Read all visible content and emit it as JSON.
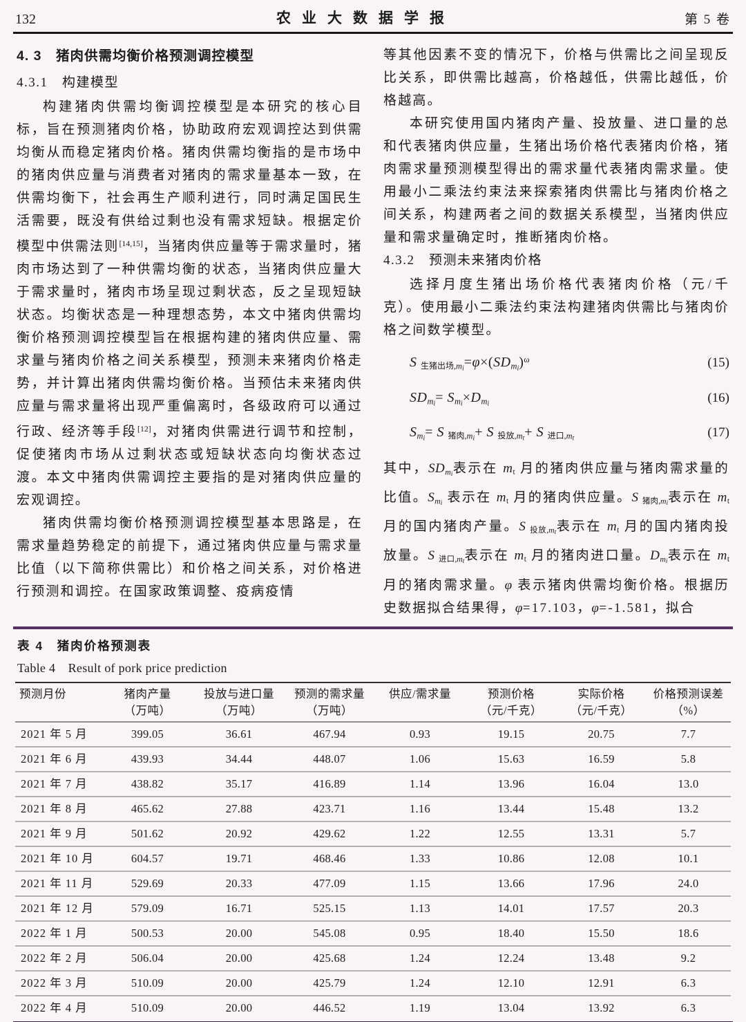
{
  "header": {
    "page_number": "132",
    "journal_title": "农业大数据学报",
    "volume": "第 5 卷"
  },
  "left_column": {
    "heading_43": "4. 3　猪肉供需均衡价格预测调控模型",
    "heading_431": "4.3.1　构建模型",
    "para_build_segments": [
      {
        "t": "构建猪肉供需均衡调控模型是本研究的核心目标，旨在预测猪肉价格，协助政府宏观调控达到供需均衡从而稳定猪肉价格。猪肉供需均衡指的是市场中的猪肉供应量与消费者对猪肉的需求量基本一致，在供需均衡下，社会再生产顺利进行，同时满足国民生活需要，既没有供给过剩也没有需求短缺。根据定价模型中供需法则",
        "s": "n"
      },
      {
        "t": "[14,15]",
        "s": "p"
      },
      {
        "t": "，当猪肉供应量等于需求量时，猪肉市场达到了一种供需均衡的状态，当猪肉供应量大于需求量时，猪肉市场呈现过剩状态，反之呈现短缺状态。均衡状态是一种理想态势，本文中猪肉供需均衡价格预测调控模型旨在根据构建的猪肉供应量、需求量与猪肉价格之间关系模型，预测未来猪肉价格走势，并计算出猪肉供需均衡价格。当预估未来猪肉供应量与需求量将出现严重偏离时，各级政府可以通过行政、经济等手段",
        "s": "n"
      },
      {
        "t": "[12]",
        "s": "p"
      },
      {
        "t": "，对猪肉供需进行调节和控制，促使猪肉市场从过剩状态或短缺状态向均衡状态过渡。本文中猪肉供需调控主要指的是对猪肉供应量的宏观调控。",
        "s": "n"
      }
    ],
    "para_basic_idea": "猪肉供需均衡价格预测调控模型基本思路是，在需求量趋势稳定的前提下，通过猪肉供应量与需求量比值（以下简称供需比）和价格之间关系，对价格进行预测和调控。在国家政策调整、疫病疫情"
  },
  "right_column": {
    "para_carry": "等其他因素不变的情况下，价格与供需比之间呈现反比关系，即供需比越高，价格越低，供需比越低，价格越高。",
    "para_research": "本研究使用国内猪肉产量、投放量、进口量的总和代表猪肉供应量，生猪出场价格代表猪肉价格，猪肉需求量预测模型得出的需求量代表猪肉需求量。使用最小二乘法约束法来探索猪肉供需比与猪肉价格之间关系，构建两者之间的数据关系模型，当猪肉供应量和需求量确定时，推断猪肉价格。",
    "heading_432": "4.3.2　预测未来猪肉价格",
    "para_select": "选择月度生猪出场价格代表猪肉价格（元/千克）。使用最小二乘法约束法构建猪肉供需比与猪肉价格之间数学模型。",
    "equations": [
      {
        "num": "(15)",
        "segments": [
          {
            "t": "S ",
            "s": "i"
          },
          {
            "t": "生猪出场,",
            "s": "s"
          },
          {
            "t": "m",
            "s": "is"
          },
          {
            "t": "i",
            "s": "ss"
          },
          {
            "t": "=",
            "s": "n"
          },
          {
            "t": "φ",
            "s": "i"
          },
          {
            "t": "×(",
            "s": "n"
          },
          {
            "t": "SD",
            "s": "i"
          },
          {
            "t": "m",
            "s": "is"
          },
          {
            "t": "i",
            "s": "ss"
          },
          {
            "t": ")",
            "s": "n"
          },
          {
            "t": "ω",
            "s": "p"
          }
        ]
      },
      {
        "num": "(16)",
        "segments": [
          {
            "t": "SD",
            "s": "i"
          },
          {
            "t": "m",
            "s": "is"
          },
          {
            "t": "i",
            "s": "ss"
          },
          {
            "t": "= ",
            "s": "n"
          },
          {
            "t": "S",
            "s": "i"
          },
          {
            "t": "m",
            "s": "is"
          },
          {
            "t": "i",
            "s": "ss"
          },
          {
            "t": "×",
            "s": "n"
          },
          {
            "t": "D",
            "s": "i"
          },
          {
            "t": "m",
            "s": "is"
          },
          {
            "t": "i",
            "s": "ss"
          }
        ]
      },
      {
        "num": "(17)",
        "segments": [
          {
            "t": "S",
            "s": "i"
          },
          {
            "t": "m",
            "s": "is"
          },
          {
            "t": "i",
            "s": "ss"
          },
          {
            "t": "= ",
            "s": "n"
          },
          {
            "t": "S ",
            "s": "i"
          },
          {
            "t": "猪肉,",
            "s": "s"
          },
          {
            "t": "m",
            "s": "is"
          },
          {
            "t": "i",
            "s": "ss"
          },
          {
            "t": "+ ",
            "s": "n"
          },
          {
            "t": "S ",
            "s": "i"
          },
          {
            "t": "投放,",
            "s": "s"
          },
          {
            "t": "m",
            "s": "is"
          },
          {
            "t": "t",
            "s": "ss"
          },
          {
            "t": "+ ",
            "s": "n"
          },
          {
            "t": "S ",
            "s": "i"
          },
          {
            "t": "进口,",
            "s": "s"
          },
          {
            "t": "m",
            "s": "is"
          },
          {
            "t": "t",
            "s": "ss"
          }
        ]
      }
    ],
    "para_explain_segments": [
      {
        "t": "其中，",
        "s": "n"
      },
      {
        "t": "SD",
        "s": "i"
      },
      {
        "t": "m",
        "s": "is"
      },
      {
        "t": "i",
        "s": "ss"
      },
      {
        "t": "表示在 ",
        "s": "n"
      },
      {
        "t": "m",
        "s": "i"
      },
      {
        "t": "t",
        "s": "s"
      },
      {
        "t": " 月的猪肉供应量与猪肉需求量的比值。",
        "s": "n"
      },
      {
        "t": "S",
        "s": "i"
      },
      {
        "t": "m",
        "s": "is"
      },
      {
        "t": "i",
        "s": "ss"
      },
      {
        "t": " 表示在 ",
        "s": "n"
      },
      {
        "t": "m",
        "s": "i"
      },
      {
        "t": "t",
        "s": "s"
      },
      {
        "t": " 月的猪肉供应量。",
        "s": "n"
      },
      {
        "t": "S ",
        "s": "i"
      },
      {
        "t": "猪肉,",
        "s": "s"
      },
      {
        "t": "m",
        "s": "is"
      },
      {
        "t": "i",
        "s": "ss"
      },
      {
        "t": "表示在 ",
        "s": "n"
      },
      {
        "t": "m",
        "s": "i"
      },
      {
        "t": "t",
        "s": "s"
      },
      {
        "t": " 月的国内猪肉产量。",
        "s": "n"
      },
      {
        "t": "S ",
        "s": "i"
      },
      {
        "t": "投放,",
        "s": "s"
      },
      {
        "t": "m",
        "s": "is"
      },
      {
        "t": "t",
        "s": "ss"
      },
      {
        "t": "表示在 ",
        "s": "n"
      },
      {
        "t": "m",
        "s": "i"
      },
      {
        "t": "t",
        "s": "s"
      },
      {
        "t": " 月的国内猪肉投放量。",
        "s": "n"
      },
      {
        "t": "S ",
        "s": "i"
      },
      {
        "t": "进口,",
        "s": "s"
      },
      {
        "t": "m",
        "s": "is"
      },
      {
        "t": "t",
        "s": "ss"
      },
      {
        "t": "表示在 ",
        "s": "n"
      },
      {
        "t": "m",
        "s": "i"
      },
      {
        "t": "t",
        "s": "s"
      },
      {
        "t": " 月的猪肉进口量。",
        "s": "n"
      },
      {
        "t": "D",
        "s": "i"
      },
      {
        "t": "m",
        "s": "is"
      },
      {
        "t": "i",
        "s": "ss"
      },
      {
        "t": "表示在 ",
        "s": "n"
      },
      {
        "t": "m",
        "s": "i"
      },
      {
        "t": "t",
        "s": "s"
      },
      {
        "t": " 月的猪肉需求量。",
        "s": "n"
      },
      {
        "t": "φ",
        "s": "i"
      },
      {
        "t": " 表示猪肉供需均衡价格。根据历史数据拟合结果得，",
        "s": "n"
      },
      {
        "t": "φ",
        "s": "i"
      },
      {
        "t": "=17.103，",
        "s": "n"
      },
      {
        "t": "φ",
        "s": "i"
      },
      {
        "t": "=-1.581，拟合",
        "s": "n"
      }
    ]
  },
  "table": {
    "caption_cn": "表 4　猪肉价格预测表",
    "caption_en": "Table 4　Result of pork price prediction",
    "headers": [
      {
        "line1": "预测月份",
        "line2": ""
      },
      {
        "line1": "猪肉产量",
        "line2": "（万吨）"
      },
      {
        "line1": "投放与进口量",
        "line2": "（万吨）"
      },
      {
        "line1": "预测的需求量",
        "line2": "（万吨）"
      },
      {
        "line1": "供应/需求量",
        "line2": ""
      },
      {
        "line1": "预测价格",
        "line2": "（元/千克）"
      },
      {
        "line1": "实际价格",
        "line2": "（元/千克）"
      },
      {
        "line1": "价格预测误差",
        "line2": "（%）"
      }
    ],
    "rows": [
      [
        "2021 年 5 月",
        "399.05",
        "36.61",
        "467.94",
        "0.93",
        "19.15",
        "20.75",
        "7.7"
      ],
      [
        "2021 年 6 月",
        "439.93",
        "34.44",
        "448.07",
        "1.06",
        "15.63",
        "16.59",
        "5.8"
      ],
      [
        "2021 年 7 月",
        "438.82",
        "35.17",
        "416.89",
        "1.14",
        "13.96",
        "16.04",
        "13.0"
      ],
      [
        "2021 年 8 月",
        "465.62",
        "27.88",
        "423.71",
        "1.16",
        "13.44",
        "15.48",
        "13.2"
      ],
      [
        "2021 年 9 月",
        "501.62",
        "20.92",
        "429.62",
        "1.22",
        "12.55",
        "13.31",
        "5.7"
      ],
      [
        "2021 年 10 月",
        "604.57",
        "19.71",
        "468.46",
        "1.33",
        "10.86",
        "12.08",
        "10.1"
      ],
      [
        "2021 年 11 月",
        "529.69",
        "20.33",
        "477.09",
        "1.15",
        "13.66",
        "17.96",
        "24.0"
      ],
      [
        "2021 年 12 月",
        "579.09",
        "16.71",
        "525.15",
        "1.13",
        "14.01",
        "17.57",
        "20.3"
      ],
      [
        "2022 年 1 月",
        "500.53",
        "20.00",
        "545.08",
        "0.95",
        "18.40",
        "15.50",
        "18.6"
      ],
      [
        "2022 年 2 月",
        "506.04",
        "20.00",
        "425.68",
        "1.24",
        "12.24",
        "13.48",
        "9.2"
      ],
      [
        "2022 年 3 月",
        "510.09",
        "20.00",
        "425.79",
        "1.24",
        "12.10",
        "12.91",
        "6.3"
      ],
      [
        "2022 年 4 月",
        "510.09",
        "20.00",
        "446.52",
        "1.19",
        "13.04",
        "13.92",
        "6.3"
      ]
    ]
  },
  "colors": {
    "accent_purple_rule": "#573061",
    "accent_purple_bar": "#5f3a6a",
    "head_rule_black": "#161616",
    "row_divider_gray": "#b3afb3",
    "page_background": "#f9f5f7"
  }
}
